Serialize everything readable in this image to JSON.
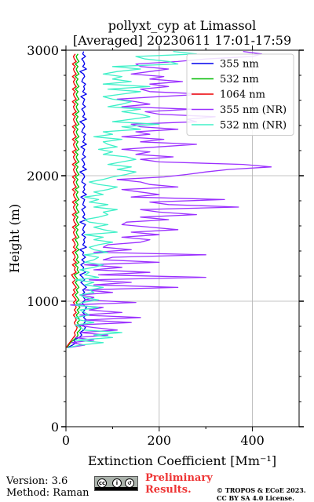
{
  "footer": {
    "version": "Version: 3.6",
    "method": "Method: Raman",
    "preliminary_line1": "Preliminary",
    "preliminary_line2": "Results.",
    "copyright_line1": "© TROPOS & ECoE 2023.",
    "copyright_line2": "CC BY SA 4.0 License.",
    "license_icon": "cc-by-sa-icon"
  },
  "chart_data": {
    "type": "line",
    "title": "pollyxt_cyp at Limassol",
    "subtitle": "[Averaged] 20230611 17:01-17:59",
    "xlabel": "Extinction Coefficient [Mm⁻¹]",
    "ylabel": "Height (m)",
    "xlim": [
      0,
      500
    ],
    "ylim": [
      0,
      3000
    ],
    "xticks": [
      0,
      200,
      400
    ],
    "yticks": [
      0,
      1000,
      2000,
      3000
    ],
    "grid": true,
    "legend_position": "top-right",
    "height": [
      630,
      650,
      670,
      690,
      710,
      730,
      750,
      770,
      790,
      810,
      830,
      850,
      870,
      890,
      910,
      930,
      950,
      970,
      990,
      1010,
      1030,
      1050,
      1070,
      1090,
      1110,
      1130,
      1150,
      1170,
      1190,
      1210,
      1230,
      1250,
      1270,
      1290,
      1310,
      1330,
      1350,
      1370,
      1390,
      1410,
      1430,
      1450,
      1470,
      1490,
      1510,
      1530,
      1550,
      1570,
      1590,
      1610,
      1630,
      1650,
      1670,
      1690,
      1710,
      1730,
      1750,
      1770,
      1790,
      1810,
      1830,
      1850,
      1870,
      1890,
      1910,
      1930,
      1950,
      1970,
      1990,
      2010,
      2030,
      2050,
      2070,
      2090,
      2110,
      2130,
      2150,
      2170,
      2190,
      2210,
      2230,
      2250,
      2270,
      2290,
      2310,
      2330,
      2350,
      2370,
      2390,
      2410,
      2430,
      2450,
      2470,
      2490,
      2510,
      2530,
      2550,
      2570,
      2590,
      2610,
      2630,
      2650,
      2670,
      2690,
      2710,
      2730,
      2750,
      2770,
      2790,
      2810,
      2830,
      2850,
      2870,
      2890,
      2910,
      2930,
      2950,
      2970,
      2990
    ],
    "series": [
      {
        "name": "355 nm",
        "color": "#0000ee",
        "values": [
          3,
          14,
          22,
          16,
          28,
          34,
          30,
          38,
          42,
          36,
          40,
          44,
          38,
          42,
          36,
          40,
          44,
          38,
          35,
          42,
          38,
          34,
          40,
          36,
          44,
          38,
          32,
          40,
          36,
          30,
          42,
          36,
          38,
          32,
          40,
          34,
          42,
          36,
          38,
          30,
          44,
          36,
          40,
          38,
          42,
          34,
          40,
          36,
          38,
          42,
          30,
          44,
          36,
          40,
          38,
          34,
          42,
          36,
          38,
          40,
          32,
          44,
          36,
          40,
          38,
          42,
          34,
          36,
          40,
          38,
          30,
          44,
          36,
          40,
          38,
          34,
          42,
          36,
          38,
          40,
          32,
          44,
          36,
          40,
          38,
          42,
          34,
          36,
          40,
          38,
          30,
          44,
          36,
          40,
          38,
          34,
          42,
          36,
          38,
          40,
          32,
          44,
          36,
          40,
          38,
          42,
          34,
          36,
          40,
          38,
          30,
          44,
          36,
          40,
          38,
          34,
          42,
          36,
          38
        ]
      },
      {
        "name": "532 nm",
        "color": "#00bb00",
        "values": [
          2,
          6,
          10,
          16,
          22,
          26,
          24,
          30,
          32,
          28,
          24,
          30,
          26,
          22,
          28,
          24,
          30,
          26,
          22,
          28,
          24,
          20,
          26,
          22,
          28,
          24,
          20,
          26,
          22,
          18,
          28,
          24,
          26,
          20,
          28,
          22,
          26,
          24,
          20,
          28,
          22,
          26,
          24,
          20,
          28,
          24,
          22,
          26,
          20,
          28,
          24,
          22,
          26,
          20,
          28,
          24,
          22,
          26,
          20,
          28,
          24,
          22,
          26,
          20,
          28,
          24,
          22,
          26,
          20,
          28,
          24,
          22,
          26,
          20,
          28,
          24,
          22,
          26,
          20,
          28,
          24,
          22,
          26,
          20,
          28,
          24,
          22,
          26,
          20,
          28,
          24,
          22,
          26,
          20,
          28,
          24,
          22,
          26,
          20,
          28,
          24,
          22,
          26,
          20,
          28,
          24,
          22,
          26,
          20,
          28,
          24,
          22,
          26,
          20,
          28,
          24,
          22,
          26
        ]
      },
      {
        "name": "1064 nm",
        "color": "#ee0000",
        "values": [
          1,
          4,
          8,
          12,
          16,
          20,
          18,
          22,
          24,
          20,
          18,
          22,
          20,
          16,
          22,
          18,
          22,
          20,
          16,
          22,
          18,
          14,
          20,
          16,
          22,
          18,
          14,
          20,
          16,
          12,
          22,
          18,
          20,
          14,
          22,
          16,
          20,
          18,
          14,
          22,
          16,
          20,
          18,
          14,
          22,
          18,
          16,
          20,
          14,
          22,
          18,
          16,
          20,
          14,
          22,
          18,
          16,
          20,
          14,
          22,
          18,
          16,
          20,
          14,
          22,
          18,
          16,
          20,
          14,
          22,
          18,
          16,
          20,
          14,
          22,
          18,
          16,
          20,
          14,
          22,
          18,
          16,
          20,
          14,
          22,
          18,
          16,
          20,
          14,
          22,
          18,
          16,
          20,
          14,
          22,
          18,
          16,
          20,
          14,
          22,
          18,
          16,
          20,
          14,
          22,
          18,
          16,
          20,
          14,
          22,
          18,
          16,
          20,
          14,
          22,
          18,
          16,
          20
        ]
      },
      {
        "name": "355 nm (NR)",
        "color": "#9b30ff",
        "values": [
          5,
          40,
          12,
          60,
          20,
          90,
          30,
          110,
          60,
          20,
          140,
          40,
          160,
          30,
          120,
          50,
          80,
          10,
          150,
          40,
          60,
          30,
          100,
          40,
          240,
          60,
          140,
          50,
          300,
          70,
          180,
          60,
          120,
          40,
          200,
          80,
          100,
          300,
          60,
          140,
          80,
          90,
          160,
          180,
          120,
          200,
          140,
          240,
          180,
          120,
          130,
          220,
          160,
          280,
          200,
          160,
          370,
          220,
          180,
          340,
          140,
          200,
          160,
          120,
          240,
          180,
          160,
          110,
          210,
          260,
          300,
          350,
          440,
          380,
          200,
          160,
          230,
          150,
          180,
          120,
          200,
          280,
          160,
          210,
          120,
          180,
          150,
          240,
          160,
          140,
          280,
          260,
          320,
          200,
          170,
          270,
          120,
          180,
          150,
          110,
          200,
          300,
          180,
          160,
          220,
          180,
          250,
          180,
          210,
          140,
          180,
          220,
          160,
          150,
          240,
          300,
          400,
          420,
          380,
          460
        ]
      },
      {
        "name": "532 nm (NR)",
        "color": "#40f0c8",
        "values": [
          4,
          30,
          80,
          20,
          100,
          60,
          120,
          40,
          30,
          20,
          60,
          30,
          20,
          50,
          40,
          30,
          70,
          20,
          35,
          70,
          40,
          30,
          60,
          50,
          80,
          40,
          60,
          20,
          70,
          40,
          50,
          30,
          60,
          80,
          40,
          60,
          70,
          40,
          90,
          60,
          50,
          70,
          100,
          60,
          80,
          40,
          110,
          80,
          60,
          90,
          50,
          40,
          70,
          90,
          80,
          110,
          60,
          90,
          50,
          70,
          40,
          80,
          60,
          90,
          110,
          70,
          50,
          80,
          100,
          130,
          150,
          110,
          140,
          90,
          120,
          150,
          130,
          80,
          100,
          70,
          110,
          90,
          80,
          120,
          60,
          100,
          80,
          160,
          120,
          200,
          100,
          140,
          180,
          160,
          120,
          160,
          90,
          120,
          140,
          100,
          80,
          120,
          160,
          90,
          180,
          80,
          140,
          100,
          120,
          80,
          110,
          160,
          100,
          240,
          220,
          170,
          150,
          280,
          230
        ]
      }
    ]
  }
}
